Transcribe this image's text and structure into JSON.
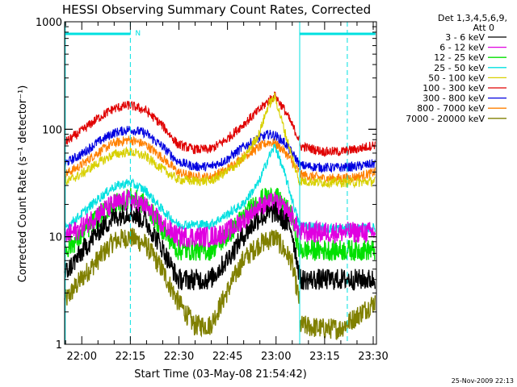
{
  "chart_data": {
    "type": "line",
    "title": "HESSI Observing Summary Count Rates, Corrected",
    "xlabel": "Start Time (03-May-08 21:54:42)",
    "ylabel": "Corrected Count Rate (s⁻¹ detector⁻¹)",
    "yscale": "log",
    "ylim": [
      1,
      1000
    ],
    "xlim_minutes_after_start": [
      0,
      96.3
    ],
    "x_ticks": [
      "22:00",
      "22:15",
      "22:30",
      "22:45",
      "23:00",
      "23:15",
      "23:30"
    ],
    "x_tick_minutes": [
      5.3,
      20.3,
      35.3,
      50.3,
      65.3,
      80.3,
      95.3
    ],
    "y_ticks": [
      "1",
      "10",
      "100",
      "1000"
    ],
    "y_tick_values": [
      1,
      10,
      100,
      1000
    ],
    "legend_title": [
      "Det 1,3,4,5,6,9,",
      "Att 0"
    ],
    "footer": "25-Nov-2009 22:13",
    "night_marker": "N",
    "dashed_vlines_minutes": [
      20.3,
      87.3
    ],
    "solid_vlines_minutes": [
      0.2,
      72.6
    ],
    "cyan_bars": [
      [
        0.2,
        20.3
      ],
      [
        72.6,
        96.0
      ]
    ],
    "series": [
      {
        "name": "3 - 6 keV",
        "color": "#000000",
        "x": [
          0,
          5,
          10,
          15,
          20,
          25,
          30,
          35,
          40,
          45,
          50,
          55,
          60,
          65,
          70,
          72.5
        ],
        "values": [
          4.5,
          7,
          11,
          15,
          17,
          14,
          8,
          4,
          4,
          4,
          6,
          10,
          15,
          17,
          12,
          4.5
        ],
        "x2": [
          72.6,
          80,
          85,
          90,
          96
        ],
        "values2": [
          4,
          4,
          4,
          4,
          4
        ]
      },
      {
        "name": "6 - 12 keV",
        "color": "#e000e0",
        "x": [
          0,
          5,
          10,
          15,
          20,
          25,
          30,
          35,
          40,
          45,
          50,
          55,
          60,
          65,
          70,
          72.5
        ],
        "values": [
          10,
          12,
          16,
          20,
          22,
          19,
          13,
          10,
          10,
          10,
          11,
          14,
          19,
          21,
          16,
          11
        ],
        "x2": [
          72.6,
          80,
          85,
          90,
          96
        ],
        "values2": [
          11,
          11,
          11,
          11,
          11
        ]
      },
      {
        "name": "12 - 25 keV",
        "color": "#00e000",
        "x": [
          0,
          5,
          10,
          15,
          20,
          25,
          30,
          35,
          40,
          45,
          50,
          55,
          60,
          65,
          70,
          72.5
        ],
        "values": [
          7.5,
          10,
          15,
          20,
          23,
          20,
          12,
          7.5,
          7.5,
          7.5,
          10,
          15,
          22,
          24,
          16,
          7.5
        ],
        "x2": [
          72.6,
          80,
          85,
          90,
          96
        ],
        "values2": [
          7.5,
          7.5,
          7.5,
          7.5,
          7.5
        ]
      },
      {
        "name": "25 - 50 keV",
        "color": "#00e0e0",
        "x": [
          0,
          5,
          10,
          15,
          20,
          25,
          30,
          35,
          40,
          45,
          50,
          55,
          60,
          63,
          65,
          68,
          72.5
        ],
        "values": [
          12,
          16,
          22,
          29,
          32,
          27,
          18,
          13,
          13,
          13,
          16,
          20,
          32,
          55,
          70,
          38,
          13
        ],
        "x2": [
          72.6,
          80,
          85,
          90,
          96
        ],
        "values2": [
          13,
          12,
          12,
          12,
          12
        ]
      },
      {
        "name": "50 - 100 keV",
        "color": "#d8d000",
        "x": [
          0,
          5,
          10,
          15,
          20,
          25,
          30,
          35,
          40,
          45,
          50,
          55,
          60,
          63,
          65,
          68,
          72.5
        ],
        "values": [
          32,
          38,
          48,
          58,
          62,
          56,
          43,
          34,
          33,
          33,
          40,
          52,
          90,
          170,
          200,
          95,
          32
        ],
        "x2": [
          72.6,
          80,
          85,
          90,
          96
        ],
        "values2": [
          33,
          32,
          32,
          32,
          33
        ]
      },
      {
        "name": "100 - 300 keV",
        "color": "#e00000",
        "x": [
          0,
          5,
          10,
          15,
          20,
          25,
          30,
          35,
          40,
          45,
          50,
          55,
          60,
          63,
          65,
          68,
          72.5
        ],
        "values": [
          75,
          95,
          125,
          155,
          168,
          150,
          110,
          72,
          65,
          65,
          80,
          110,
          150,
          185,
          205,
          150,
          80
        ],
        "x2": [
          72.6,
          80,
          85,
          90,
          96
        ],
        "values2": [
          70,
          62,
          62,
          65,
          72
        ]
      },
      {
        "name": "300 - 800 keV",
        "color": "#0000e0",
        "x": [
          0,
          5,
          10,
          15,
          20,
          25,
          30,
          35,
          40,
          45,
          50,
          55,
          60,
          63,
          65,
          68,
          72.5
        ],
        "values": [
          48,
          58,
          75,
          92,
          100,
          92,
          70,
          50,
          45,
          45,
          52,
          68,
          82,
          90,
          88,
          75,
          48
        ],
        "x2": [
          72.6,
          80,
          85,
          90,
          96
        ],
        "values2": [
          46,
          44,
          44,
          45,
          48
        ]
      },
      {
        "name": "800 - 7000 keV",
        "color": "#ff8000",
        "x": [
          0,
          5,
          10,
          15,
          20,
          25,
          30,
          35,
          40,
          45,
          50,
          55,
          60,
          63,
          65,
          68,
          72.5
        ],
        "values": [
          38,
          46,
          60,
          74,
          80,
          72,
          55,
          40,
          36,
          36,
          42,
          55,
          68,
          76,
          74,
          62,
          40
        ],
        "x2": [
          72.6,
          80,
          85,
          90,
          96
        ],
        "values2": [
          38,
          35,
          35,
          36,
          40
        ]
      },
      {
        "name": "7000 - 20000 keV",
        "color": "#808000",
        "x": [
          0,
          5,
          10,
          15,
          20,
          25,
          30,
          35,
          40,
          45,
          50,
          55,
          60,
          65,
          70,
          72.5
        ],
        "values": [
          2.5,
          4,
          6,
          9,
          10,
          8.5,
          5,
          2.5,
          1.5,
          1.5,
          3,
          6,
          8.5,
          10,
          6,
          2.5
        ],
        "x2": [
          72.6,
          80,
          85,
          90,
          96
        ],
        "values2": [
          1.5,
          1.4,
          1.4,
          1.8,
          2.5
        ]
      }
    ]
  }
}
